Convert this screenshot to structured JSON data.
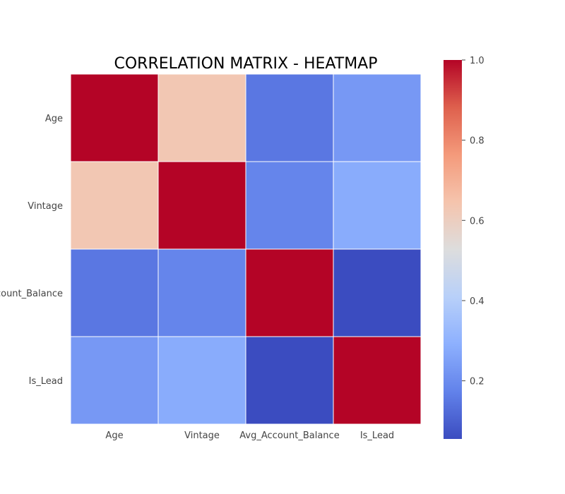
{
  "chart_data": {
    "type": "heatmap",
    "title": "CORRELATION MATRIX - HEATMAP",
    "x_labels": [
      "Age",
      "Vintage",
      "Avg_Account_Balance",
      "Is_Lead"
    ],
    "y_labels": [
      "Age",
      "Vintage",
      "Avg_Account_Balance",
      "Is_Lead"
    ],
    "matrix": [
      [
        1.0,
        0.63,
        0.15,
        0.23
      ],
      [
        0.63,
        1.0,
        0.18,
        0.28
      ],
      [
        0.15,
        0.18,
        1.0,
        0.055
      ],
      [
        0.23,
        0.28,
        0.055,
        1.0
      ]
    ],
    "colormap": "coolwarm",
    "vmin": 0.055,
    "vmax": 1.0,
    "colorbar_ticks": [
      0.2,
      0.4,
      0.6,
      0.8,
      1.0
    ],
    "colorbar_tick_labels": [
      "0.2",
      "0.4",
      "0.6",
      "0.8",
      "1.0"
    ],
    "grid": false,
    "cell_border_color": "#ffffff"
  }
}
